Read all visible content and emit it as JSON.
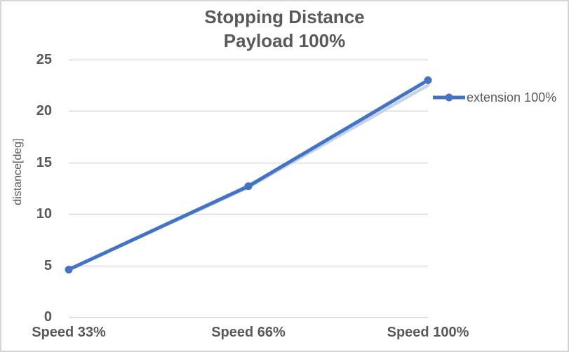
{
  "chart_data": {
    "type": "line",
    "title": "Stopping Distance Payload 100%",
    "title_lines": [
      "Stopping Distance",
      "Payload 100%"
    ],
    "categories": [
      "Speed 33%",
      "Speed 66%",
      "Speed 100%"
    ],
    "series": [
      {
        "name": "extension 100%",
        "values": [
          4.6,
          12.7,
          23.0
        ],
        "color": "#4472C4",
        "marker": "circle"
      }
    ],
    "shadow_series": {
      "name": "extension 100% line shadow",
      "values": [
        4.6,
        12.6,
        22.5
      ],
      "color": "#C3D4EC"
    },
    "xlabel": "",
    "ylabel": "distance[deg]",
    "ylim": [
      0,
      25
    ],
    "yticks": [
      0,
      5,
      10,
      15,
      20,
      25
    ],
    "grid": true,
    "legend_position": "right-of-plot"
  },
  "colors": {
    "text": "#595959",
    "gridline": "#D9D9D9",
    "plot_background": "#FFFFFF",
    "chart_border": "#D5D5D5"
  }
}
